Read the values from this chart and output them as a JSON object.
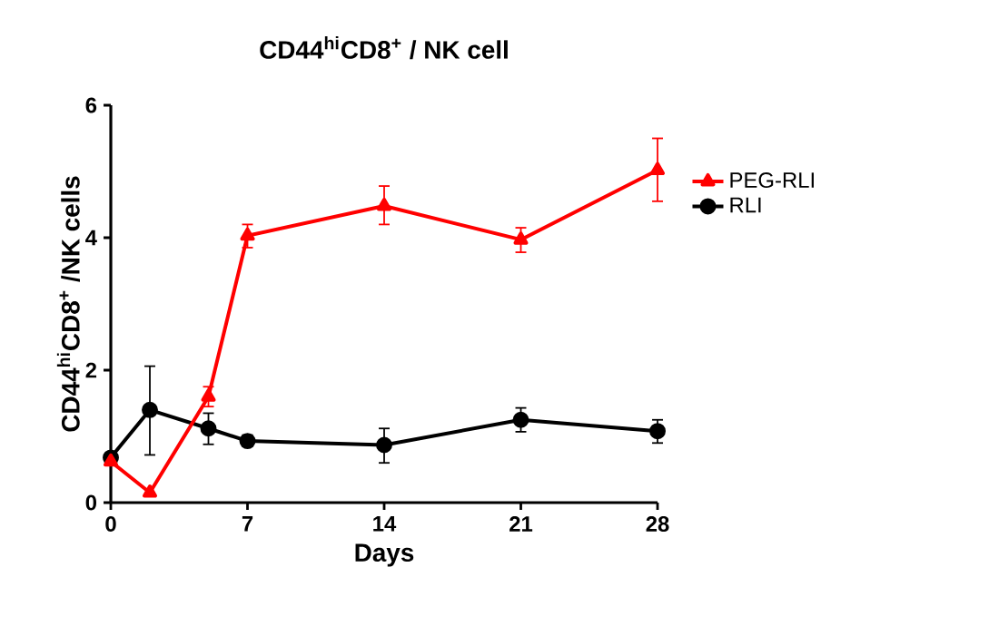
{
  "chart_data": {
    "type": "line",
    "title": "CD44$^{hi}$CD8$^{+}$ / NK cell",
    "xlabel": "Days",
    "ylabel": "CD44$^{hi}$CD8$^{+}$ /NK cells",
    "x": [
      0,
      2,
      5,
      7,
      14,
      21,
      28
    ],
    "xlim": [
      0,
      28
    ],
    "xticks": [
      0,
      7,
      14,
      21,
      28
    ],
    "ylim": [
      0,
      6
    ],
    "yticks": [
      0,
      2,
      4,
      6
    ],
    "legend": "right",
    "line_style": "solid",
    "series": [
      {
        "name": "PEG-RLI",
        "color": "#ff0000",
        "marker": "triangle",
        "values": [
          0.62,
          0.15,
          1.6,
          4.03,
          4.48,
          3.97,
          5.02
        ],
        "errors": [
          null,
          null,
          [
            1.45,
            1.75
          ],
          [
            3.85,
            4.2
          ],
          [
            4.2,
            4.78
          ],
          [
            3.78,
            4.15
          ],
          [
            4.55,
            5.5
          ]
        ]
      },
      {
        "name": "RLI",
        "color": "#000000",
        "marker": "circle",
        "values": [
          0.68,
          1.4,
          1.12,
          0.93,
          0.87,
          1.25,
          1.08
        ],
        "errors": [
          null,
          [
            0.72,
            2.06
          ],
          [
            0.88,
            1.35
          ],
          [
            0.85,
            1.02
          ],
          [
            0.6,
            1.12
          ],
          [
            1.07,
            1.43
          ],
          [
            0.9,
            1.25
          ]
        ]
      }
    ]
  }
}
